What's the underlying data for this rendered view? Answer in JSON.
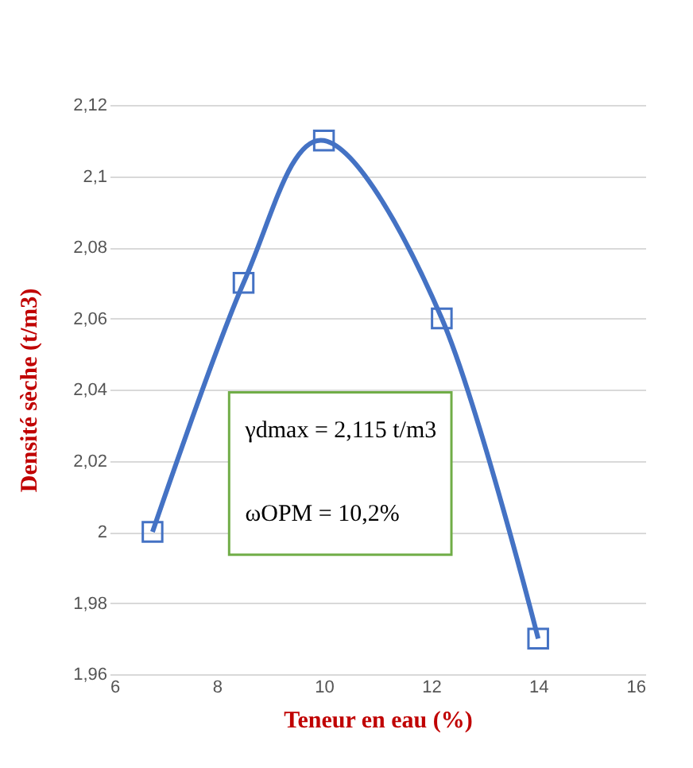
{
  "chart_data": {
    "type": "line",
    "xlabel": "Teneur en eau (%)",
    "ylabel": "Densité sèche  (t/m3)",
    "annotations": [
      "γdmax = 2,115 t/m3",
      "ωOPM = 10,2%"
    ],
    "series": [
      {
        "color": "#4472c4",
        "x": [
          6.8,
          8.5,
          10,
          12.2,
          14
        ],
        "values": [
          2.0,
          2.07,
          2.11,
          2.06,
          1.97
        ]
      }
    ],
    "marker": "square",
    "line_style": "solid",
    "grid": "y",
    "xlim": [
      6,
      16
    ],
    "xticks": [
      6,
      8,
      10,
      12,
      14,
      16
    ],
    "ylim": [
      1.96,
      2.12
    ],
    "yticks": [
      {
        "value": 1.96,
        "label": "1,96"
      },
      {
        "value": 1.98,
        "label": "1,98"
      },
      {
        "value": 2,
        "label": "2"
      },
      {
        "value": 2.02,
        "label": "2,02"
      },
      {
        "value": 2.04,
        "label": "2,04"
      },
      {
        "value": 2.06,
        "label": "2,06"
      },
      {
        "value": 2.08,
        "label": "2,08"
      },
      {
        "value": 2.1,
        "label": "2,1"
      },
      {
        "value": 2.12,
        "label": "2,12"
      }
    ]
  }
}
